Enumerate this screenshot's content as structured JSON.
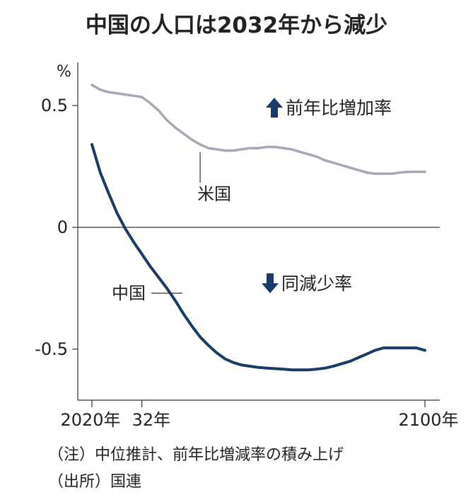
{
  "chart_data": {
    "type": "line",
    "title": "中国の人口は2032年から減少",
    "ylabel": "%",
    "ylim": [
      -0.7,
      0.67
    ],
    "xlim": [
      2020,
      2100
    ],
    "yticks": [
      {
        "value": 0.5,
        "label": "0.5"
      },
      {
        "value": 0,
        "label": "0"
      },
      {
        "value": -0.5,
        "label": "-0.5"
      }
    ],
    "xticks": [
      {
        "value": 2020,
        "label": "2020年"
      },
      {
        "value": 2032,
        "label": "32年"
      },
      {
        "value": 2100,
        "label": "2100年"
      }
    ],
    "zero_line": true,
    "annotations": {
      "up": {
        "arrow": "up",
        "text": "前年比増加率"
      },
      "down": {
        "arrow": "down",
        "text": "同減少率"
      }
    },
    "series": [
      {
        "name": "米国",
        "color": "#a9a6b8",
        "x": [
          2020,
          2021,
          2022,
          2023,
          2024,
          2026,
          2028,
          2030,
          2032,
          2034,
          2036,
          2038,
          2040,
          2042,
          2044,
          2046,
          2048,
          2050,
          2052,
          2054,
          2056,
          2058,
          2060,
          2062,
          2064,
          2066,
          2068,
          2070,
          2072,
          2074,
          2076,
          2078,
          2080,
          2082,
          2084,
          2086,
          2088,
          2090,
          2092,
          2094,
          2096,
          2098,
          2100
        ],
        "values": [
          0.585,
          0.575,
          0.565,
          0.56,
          0.555,
          0.55,
          0.545,
          0.54,
          0.535,
          0.51,
          0.48,
          0.44,
          0.41,
          0.385,
          0.36,
          0.34,
          0.325,
          0.32,
          0.315,
          0.315,
          0.32,
          0.325,
          0.325,
          0.33,
          0.33,
          0.325,
          0.32,
          0.31,
          0.3,
          0.29,
          0.275,
          0.265,
          0.255,
          0.245,
          0.235,
          0.225,
          0.22,
          0.22,
          0.22,
          0.225,
          0.228,
          0.228,
          0.228
        ]
      },
      {
        "name": "中国",
        "color": "#1a3a68",
        "x": [
          2020,
          2022,
          2024,
          2026,
          2028,
          2030,
          2032,
          2034,
          2036,
          2038,
          2040,
          2042,
          2044,
          2046,
          2048,
          2050,
          2052,
          2054,
          2056,
          2058,
          2060,
          2062,
          2064,
          2066,
          2068,
          2070,
          2072,
          2074,
          2076,
          2078,
          2080,
          2082,
          2084,
          2086,
          2088,
          2090,
          2092,
          2094,
          2096,
          2098,
          2100
        ],
        "values": [
          0.34,
          0.225,
          0.14,
          0.06,
          -0.005,
          -0.06,
          -0.11,
          -0.16,
          -0.205,
          -0.25,
          -0.3,
          -0.355,
          -0.405,
          -0.45,
          -0.485,
          -0.515,
          -0.54,
          -0.555,
          -0.565,
          -0.57,
          -0.575,
          -0.578,
          -0.58,
          -0.582,
          -0.585,
          -0.585,
          -0.585,
          -0.582,
          -0.578,
          -0.57,
          -0.56,
          -0.55,
          -0.535,
          -0.52,
          -0.505,
          -0.495,
          -0.495,
          -0.495,
          -0.495,
          -0.495,
          -0.505
        ]
      }
    ],
    "notes": [
      "（注）中位推計、前年比増減率の積み上げ",
      "（出所）国連"
    ]
  }
}
